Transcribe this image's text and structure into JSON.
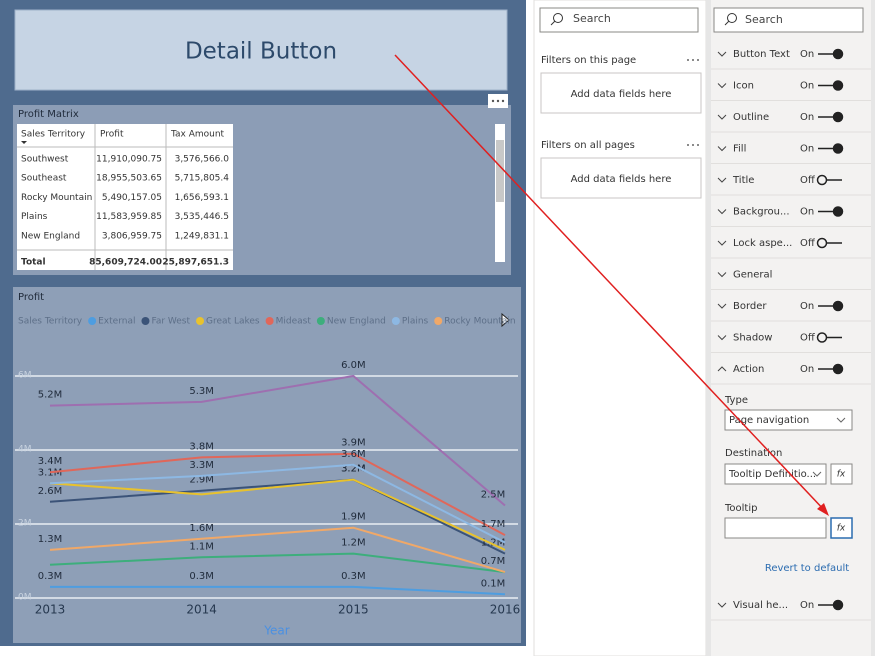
{
  "button": {
    "text": "Detail Button"
  },
  "matrix": {
    "title": "Profit Matrix",
    "columns": [
      "Sales Territory",
      "Profit",
      "Tax Amount"
    ],
    "rows": [
      [
        "Southwest",
        "11,910,090.75",
        "3,576,566.0"
      ],
      [
        "Southeast",
        "18,955,503.65",
        "5,715,805.4"
      ],
      [
        "Rocky Mountain",
        "5,490,157.05",
        "1,656,593.1"
      ],
      [
        "Plains",
        "11,583,959.85",
        "3,535,446.5"
      ],
      [
        "New England",
        "3,806,959.75",
        "1,249,831.1"
      ]
    ],
    "total": [
      "Total",
      "85,609,724.00",
      "25,897,651.3"
    ]
  },
  "chart_data": {
    "type": "line",
    "title": "Profit",
    "legend_title": "Sales Territory",
    "x_label": "Year",
    "categories": [
      "2013",
      "2014",
      "2015",
      "2016"
    ],
    "ylim": [
      0,
      7
    ],
    "yticks": [
      {
        "value": 0,
        "label": "0M"
      },
      {
        "value": 2,
        "label": "2M"
      },
      {
        "value": 4,
        "label": "4M"
      },
      {
        "value": 6,
        "label": "6M"
      }
    ],
    "grid": true,
    "series": [
      {
        "name": "External",
        "color": "#4e9de0",
        "values": [
          0.3,
          0.3,
          0.3,
          0.1
        ],
        "value_labels": [
          "0.3M",
          "0.3M",
          "0.3M",
          "0.1M"
        ]
      },
      {
        "name": "Far West",
        "color": "#3b5378",
        "values": [
          2.6,
          2.9,
          3.2,
          1.2
        ],
        "value_labels": [
          "2.6M",
          "2.9M",
          "3.2M",
          "1.2M"
        ]
      },
      {
        "name": "Great Lakes",
        "color": "#e8c22d",
        "values": [
          3.1,
          2.8,
          3.2,
          1.3
        ],
        "value_labels": [
          "3.1M",
          null,
          "3.2M",
          null
        ]
      },
      {
        "name": "Mideast",
        "color": "#e0675a",
        "values": [
          3.4,
          3.8,
          3.9,
          1.7
        ],
        "value_labels": [
          "3.4M",
          "3.8M",
          "3.9M",
          "1.7M"
        ]
      },
      {
        "name": "New England",
        "color": "#3dae7c",
        "values": [
          0.9,
          1.1,
          1.2,
          0.7
        ],
        "value_labels": [
          null,
          "1.1M",
          "1.2M",
          "0.7M"
        ]
      },
      {
        "name": "Plains",
        "color": "#8db8e3",
        "values": [
          3.1,
          3.3,
          3.6,
          1.5
        ],
        "value_labels": [
          null,
          "3.3M",
          "3.6M",
          null
        ]
      },
      {
        "name": "Rocky Mountain",
        "color": "#f0a868",
        "values": [
          1.3,
          1.6,
          1.9,
          0.7
        ],
        "value_labels": [
          "1.3M",
          "1.6M",
          "1.9M",
          null
        ]
      },
      {
        "color": "#9e6fb0",
        "values": [
          5.2,
          5.3,
          6.0,
          2.5
        ],
        "value_labels": [
          "5.2M",
          "5.3M",
          "6.0M",
          "2.5M"
        ]
      }
    ]
  },
  "filters": {
    "search": "Search",
    "sections": [
      {
        "title": "Filters on this page",
        "placeholder": "Add data fields here"
      },
      {
        "title": "Filters on all pages",
        "placeholder": "Add data fields here"
      }
    ]
  },
  "format": {
    "search": "Search",
    "cards": [
      {
        "label": "Button Text",
        "state": "On"
      },
      {
        "label": "Icon",
        "state": "On"
      },
      {
        "label": "Outline",
        "state": "On"
      },
      {
        "label": "Fill",
        "state": "On"
      },
      {
        "label": "Title",
        "state": "Off"
      },
      {
        "label": "Backgrou...",
        "state": "On"
      },
      {
        "label": "Lock aspe...",
        "state": "Off"
      },
      {
        "label": "General"
      },
      {
        "label": "Border",
        "state": "On"
      },
      {
        "label": "Shadow",
        "state": "Off"
      },
      {
        "label": "Action",
        "state": "On"
      }
    ],
    "action": {
      "type_label": "Type",
      "type_value": "Page navigation",
      "destination_label": "Destination",
      "destination_value": "Tooltip Definitio...",
      "tooltip_label": "Tooltip",
      "fx": "fx",
      "revert": "Revert to default"
    },
    "more_cards": [
      {
        "label": "Visual he...",
        "state": "On"
      }
    ]
  }
}
